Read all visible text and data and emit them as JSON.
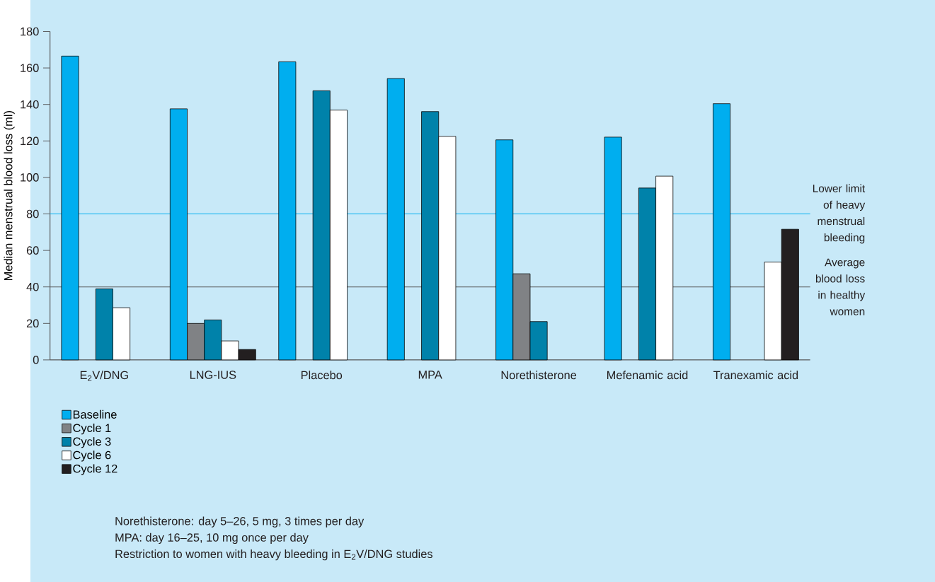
{
  "chart_data": {
    "type": "bar",
    "ylabel": "Median menstrual blood loss (ml)",
    "categories": [
      "E$_{2}$V/DNG",
      "LNG-IUS",
      "Placebo",
      "MPA",
      "Norethisterone",
      "Mefenamic acid",
      "Tranexamic acid"
    ],
    "series": [
      {
        "name": "Baseline",
        "color": "#00aeef",
        "values": [
          166.5,
          137.6,
          163.4,
          154.2,
          120.6,
          122.1,
          140.4
        ]
      },
      {
        "name": "Cycle 1",
        "color": "#808285",
        "values": [
          null,
          20,
          null,
          null,
          47.2,
          null,
          null
        ]
      },
      {
        "name": "Cycle 3",
        "color": "#0082aa",
        "values": [
          38.9,
          21.9,
          147.5,
          136.1,
          21,
          94.2,
          null
        ]
      },
      {
        "name": "Cycle 6",
        "color": "#ffffff",
        "values": [
          28.6,
          10.4,
          136.9,
          122.5,
          null,
          100.7,
          53.6
        ]
      },
      {
        "name": "Cycle 12",
        "color": "#231f20",
        "values": [
          null,
          5.7,
          null,
          null,
          null,
          null,
          71.6
        ]
      }
    ],
    "ylim": [
      0,
      180
    ],
    "yticks": [
      0,
      20,
      40,
      60,
      80,
      100,
      120,
      140,
      160,
      180
    ],
    "ref_lines": [
      {
        "axis": "y",
        "value": 80,
        "label": "Lower limit of heavy menstrual bleeding",
        "color": "#00aeef"
      },
      {
        "axis": "y",
        "value": 40,
        "label": "Average blood loss in healthy women",
        "color": "#58595b"
      }
    ],
    "legend": "bottom",
    "annotations": [
      "Norethisterone: day 5–26, 5 mg, 3 times per day",
      "MPA: day 16–25, 10 mg once per day",
      "Restriction to women with heavy bleeding in E$_{2}$V/DNG studies"
    ]
  }
}
